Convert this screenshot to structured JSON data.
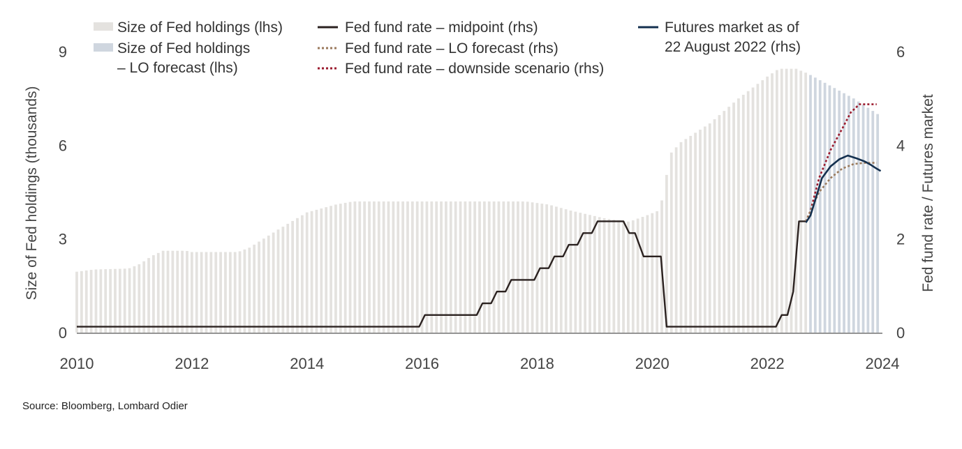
{
  "source": "Source: Bloomberg, Lombard Odier",
  "legend": {
    "holdings": "Size of Fed holdings (lhs)",
    "holdings_forecast_line1": "Size of Fed holdings",
    "holdings_forecast_line2": "– LO forecast (lhs)",
    "midpoint": "Fed fund rate – midpoint (rhs)",
    "lo_forecast": "Fed fund rate – LO forecast (rhs)",
    "downside": "Fed fund rate – downside scenario (rhs)",
    "futures_line1": "Futures market as of",
    "futures_line2": "22 August 2022 (rhs)"
  },
  "colors": {
    "holdings": "#e4e2df",
    "holdings_forecast": "#cfd6df",
    "midpoint": "#2b2220",
    "lo_forecast": "#9a7a5c",
    "downside": "#9b1b2e",
    "futures": "#14304f",
    "axis": "#555555"
  },
  "chart_data": {
    "type": "bar",
    "title": "",
    "ylabel_left": "Size of Fed holdings (thousands)",
    "ylabel_right": "Fed fund rate / Futures market",
    "xlim": [
      2010,
      2024
    ],
    "ylim_left": [
      0,
      9
    ],
    "ylim_right": [
      0,
      6
    ],
    "x_ticks": [
      "2010",
      "2012",
      "2014",
      "2016",
      "2018",
      "2020",
      "2022",
      "2024"
    ],
    "y_ticks_left": [
      "0",
      "3",
      "6",
      "9"
    ],
    "y_ticks_right": [
      "0",
      "2",
      "4",
      "6"
    ],
    "grid": false,
    "legend_position": "top",
    "holdings_anchors": [
      [
        2010.0,
        1.95
      ],
      [
        2010.3,
        2.02
      ],
      [
        2010.9,
        2.05
      ],
      [
        2011.1,
        2.2
      ],
      [
        2011.3,
        2.45
      ],
      [
        2011.5,
        2.62
      ],
      [
        2011.9,
        2.62
      ],
      [
        2012.0,
        2.58
      ],
      [
        2012.8,
        2.58
      ],
      [
        2013.0,
        2.72
      ],
      [
        2013.5,
        3.3
      ],
      [
        2014.0,
        3.85
      ],
      [
        2014.5,
        4.1
      ],
      [
        2014.8,
        4.2
      ],
      [
        2017.8,
        4.2
      ],
      [
        2018.2,
        4.1
      ],
      [
        2018.6,
        3.9
      ],
      [
        2019.2,
        3.65
      ],
      [
        2019.6,
        3.55
      ],
      [
        2019.9,
        3.75
      ],
      [
        2020.1,
        3.9
      ],
      [
        2020.2,
        4.4
      ],
      [
        2020.3,
        5.7
      ],
      [
        2020.5,
        6.1
      ],
      [
        2021.0,
        6.7
      ],
      [
        2021.5,
        7.5
      ],
      [
        2022.0,
        8.2
      ],
      [
        2022.2,
        8.45
      ],
      [
        2022.5,
        8.45
      ],
      [
        2022.7,
        8.3
      ],
      [
        2023.0,
        8.0
      ],
      [
        2023.5,
        7.5
      ],
      [
        2024.0,
        6.9
      ]
    ],
    "holdings_forecast_start": 2022.67,
    "fed_funds_midpoint": [
      [
        2010.0,
        0.125
      ],
      [
        2015.95,
        0.125
      ],
      [
        2016.05,
        0.375
      ],
      [
        2016.95,
        0.375
      ],
      [
        2017.05,
        0.625
      ],
      [
        2017.2,
        0.625
      ],
      [
        2017.3,
        0.875
      ],
      [
        2017.45,
        0.875
      ],
      [
        2017.55,
        1.125
      ],
      [
        2017.95,
        1.125
      ],
      [
        2018.05,
        1.375
      ],
      [
        2018.2,
        1.375
      ],
      [
        2018.3,
        1.625
      ],
      [
        2018.45,
        1.625
      ],
      [
        2018.55,
        1.875
      ],
      [
        2018.7,
        1.875
      ],
      [
        2018.8,
        2.125
      ],
      [
        2018.95,
        2.125
      ],
      [
        2019.05,
        2.375
      ],
      [
        2019.5,
        2.375
      ],
      [
        2019.6,
        2.125
      ],
      [
        2019.7,
        2.125
      ],
      [
        2019.85,
        1.625
      ],
      [
        2020.15,
        1.625
      ],
      [
        2020.25,
        0.125
      ],
      [
        2022.15,
        0.125
      ],
      [
        2022.25,
        0.375
      ],
      [
        2022.35,
        0.375
      ],
      [
        2022.45,
        0.875
      ],
      [
        2022.5,
        1.625
      ],
      [
        2022.55,
        2.375
      ],
      [
        2022.67,
        2.375
      ]
    ],
    "fed_funds_lo_forecast": [
      [
        2022.67,
        2.375
      ],
      [
        2022.75,
        2.6
      ],
      [
        2022.9,
        3.0
      ],
      [
        2023.1,
        3.3
      ],
      [
        2023.3,
        3.5
      ],
      [
        2023.5,
        3.6
      ],
      [
        2023.7,
        3.625
      ],
      [
        2023.9,
        3.625
      ]
    ],
    "fed_funds_downside": [
      [
        2022.67,
        2.375
      ],
      [
        2022.75,
        2.6
      ],
      [
        2022.9,
        3.3
      ],
      [
        2023.1,
        3.9
      ],
      [
        2023.3,
        4.35
      ],
      [
        2023.45,
        4.7
      ],
      [
        2023.6,
        4.875
      ],
      [
        2023.9,
        4.875
      ]
    ],
    "futures_market": [
      [
        2022.67,
        2.35
      ],
      [
        2022.75,
        2.5
      ],
      [
        2022.85,
        2.9
      ],
      [
        2022.95,
        3.3
      ],
      [
        2023.1,
        3.55
      ],
      [
        2023.25,
        3.7
      ],
      [
        2023.4,
        3.78
      ],
      [
        2023.55,
        3.72
      ],
      [
        2023.7,
        3.65
      ],
      [
        2023.8,
        3.58
      ],
      [
        2023.9,
        3.5
      ],
      [
        2023.97,
        3.45
      ]
    ]
  }
}
